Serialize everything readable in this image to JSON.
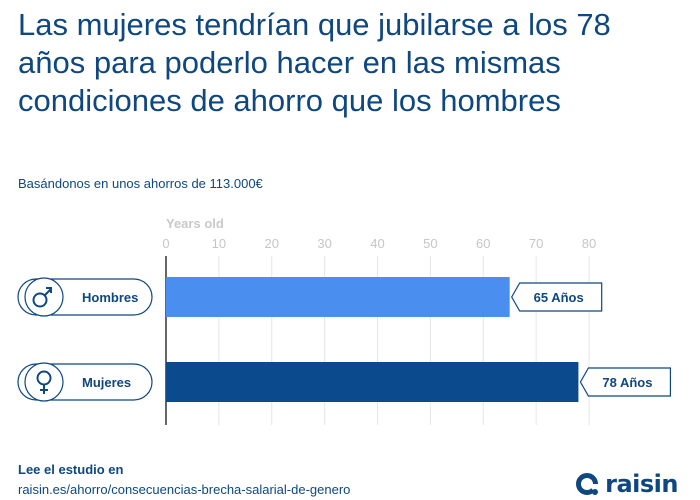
{
  "header": {
    "title": "Las mujeres tendrían que jubilarse a los 78 años para poderlo hacer en las mismas condiciones de ahorro que los hombres",
    "subtitle": "Basándonos en unos ahorros de 113.000€"
  },
  "chart_data": {
    "type": "bar",
    "orientation": "horizontal",
    "xlabel": "Years old",
    "xlim": [
      0,
      80
    ],
    "xticks": [
      "0",
      "10",
      "20",
      "30",
      "40",
      "50",
      "60",
      "70",
      "80"
    ],
    "grid": true,
    "categories": [
      {
        "label": "Hombres",
        "icon": "male-symbol-icon",
        "value": 65,
        "value_label": "65 Años",
        "color": "#4a8ff0"
      },
      {
        "label": "Mujeres",
        "icon": "female-symbol-icon",
        "value": 78,
        "value_label": "78 Años",
        "color": "#0b4a8c"
      }
    ]
  },
  "footer": {
    "label": "Lee el estudio en",
    "link": "raisin.es/ahorro/consecuencias-brecha-salarial-de-genero"
  },
  "brand": {
    "name": "raisin",
    "icon": "raisin-logo-icon",
    "color": "#0f4780"
  }
}
